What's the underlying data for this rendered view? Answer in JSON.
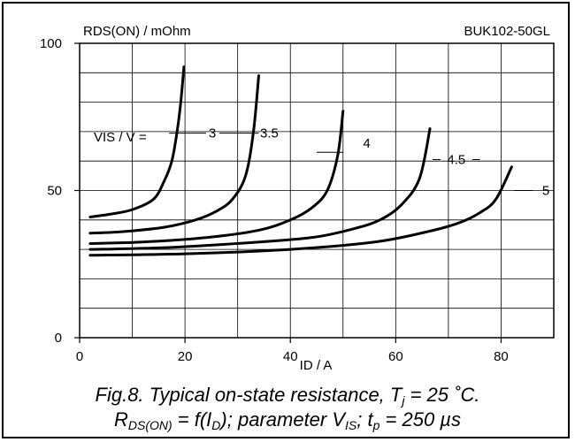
{
  "chart_data": {
    "type": "line",
    "title": "",
    "ylabel": "RDS(ON) / mOhm",
    "xlabel": "ID / A",
    "device": "BUK102-50GL",
    "xlim": [
      0,
      90
    ],
    "ylim": [
      0,
      100
    ],
    "x_ticks": [
      0,
      20,
      40,
      60,
      80
    ],
    "y_ticks": [
      0,
      50,
      100
    ],
    "grid": true,
    "parameter_label": "VIS / V =",
    "series": [
      {
        "name": "3",
        "x": [
          2,
          6,
          10,
          14,
          16,
          17.5,
          18.5,
          19.2,
          19.8
        ],
        "y": [
          41,
          42,
          43.5,
          47,
          53,
          60,
          70,
          80,
          92
        ]
      },
      {
        "name": "3.5",
        "x": [
          2,
          8,
          16,
          22,
          26,
          29,
          31.5,
          33,
          34
        ],
        "y": [
          35.5,
          36,
          37.5,
          40,
          43,
          47,
          55,
          70,
          89
        ]
      },
      {
        "name": "4",
        "x": [
          2,
          12,
          24,
          34,
          40,
          44,
          47,
          49,
          50
        ],
        "y": [
          32,
          32.5,
          34,
          36.5,
          40,
          44,
          50,
          62,
          77
        ]
      },
      {
        "name": "4.5",
        "x": [
          2,
          15,
          30,
          44,
          52,
          57,
          61,
          64.5,
          66.5
        ],
        "y": [
          30,
          30.5,
          32,
          34,
          37,
          40,
          45,
          54,
          71
        ]
      },
      {
        "name": "5",
        "x": [
          2,
          20,
          40,
          56,
          66,
          72,
          76,
          79,
          82
        ],
        "y": [
          28,
          28.5,
          30,
          32.5,
          36,
          39,
          42.5,
          47,
          58
        ]
      }
    ],
    "series_label_positions": [
      {
        "name": "3",
        "x": 34,
        "y": 69.5
      },
      {
        "name": "3.5",
        "x": 38,
        "y": 69.5
      },
      {
        "name": "4",
        "x": 55,
        "y": 66
      },
      {
        "name": "4.5",
        "x": 74,
        "y": 60
      },
      {
        "name": "5",
        "x": 96,
        "y": 50
      }
    ]
  },
  "caption": {
    "line1_prefix": "Fig.8.   Typical on-state resistance, T",
    "line1_sub": "j",
    "line1_suffix": " = 25 ˚C.",
    "line2_a": "R",
    "line2_a_sub": "DS(ON)",
    "line2_b": " = f(I",
    "line2_b_sub": "D",
    "line2_c": "); parameter V",
    "line2_c_sub": "IS",
    "line2_d": "; t",
    "line2_d_sub": "p",
    "line2_e": " = 250 µs"
  }
}
